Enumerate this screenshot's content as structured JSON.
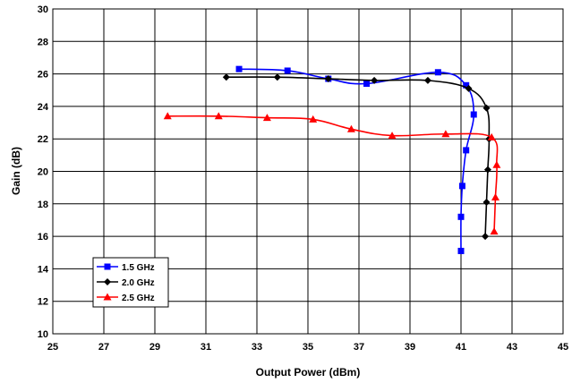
{
  "chart_data": {
    "type": "line",
    "xlabel": "Output Power (dBm)",
    "ylabel": "Gain (dB)",
    "xlim": [
      25,
      45
    ],
    "ylim": [
      10,
      30
    ],
    "xticks": [
      25,
      27,
      29,
      31,
      33,
      35,
      37,
      39,
      41,
      43,
      45
    ],
    "yticks": [
      10,
      12,
      14,
      16,
      18,
      20,
      22,
      24,
      26,
      28,
      30
    ],
    "grid": true,
    "legend_position": "bottom-left",
    "series": [
      {
        "name": "1.5 GHz",
        "color": "#0000ff",
        "marker": "square",
        "points": [
          [
            32.3,
            26.3
          ],
          [
            34.2,
            26.2
          ],
          [
            35.8,
            25.7
          ],
          [
            37.3,
            25.4
          ],
          [
            40.1,
            26.1
          ],
          [
            41.2,
            25.3
          ],
          [
            41.5,
            23.5
          ],
          [
            41.2,
            21.3
          ],
          [
            41.05,
            19.1
          ],
          [
            41.0,
            17.2
          ],
          [
            41.0,
            15.1
          ]
        ]
      },
      {
        "name": "2.0 GHz",
        "color": "#000000",
        "marker": "diamond",
        "points": [
          [
            31.8,
            25.8
          ],
          [
            33.8,
            25.8
          ],
          [
            35.8,
            25.7
          ],
          [
            37.6,
            25.6
          ],
          [
            39.7,
            25.6
          ],
          [
            41.3,
            25.1
          ],
          [
            42.0,
            23.9
          ],
          [
            42.1,
            22.0
          ],
          [
            42.05,
            20.1
          ],
          [
            42.0,
            18.1
          ],
          [
            41.95,
            16.0
          ]
        ]
      },
      {
        "name": "2.5 GHz",
        "color": "#ff0000",
        "marker": "triangle",
        "points": [
          [
            29.5,
            23.4
          ],
          [
            31.5,
            23.4
          ],
          [
            33.4,
            23.3
          ],
          [
            35.2,
            23.2
          ],
          [
            36.7,
            22.6
          ],
          [
            38.3,
            22.2
          ],
          [
            40.4,
            22.3
          ],
          [
            42.2,
            22.1
          ],
          [
            42.4,
            20.4
          ],
          [
            42.35,
            18.4
          ],
          [
            42.3,
            16.3
          ]
        ]
      }
    ]
  }
}
